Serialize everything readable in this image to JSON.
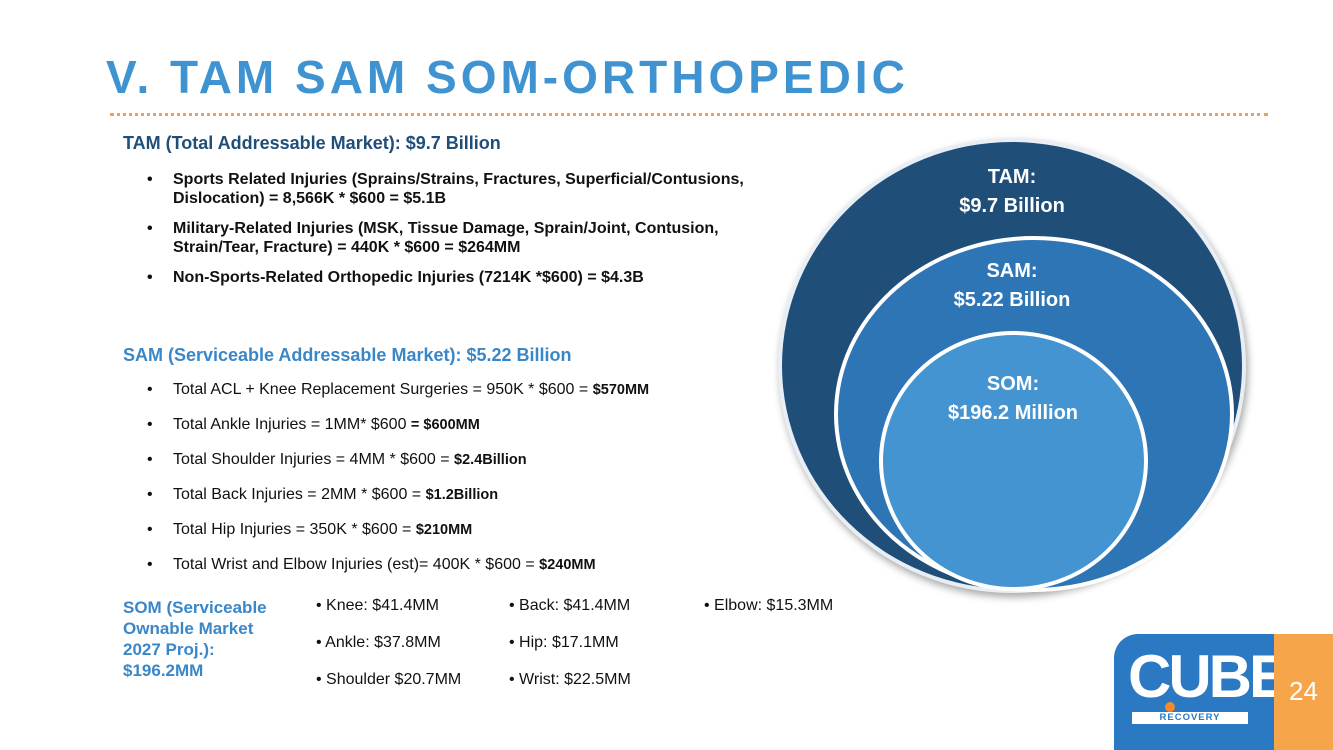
{
  "title": "V. TAM SAM SOM-ORTHOPEDIC",
  "tam": {
    "heading": "TAM (Total Addressable Market): $9.7 Billion",
    "items": [
      "Sports Related Injuries (Sprains/Strains, Fractures, Superficial/Contusions, Dislocation) = 8,566K * $600 = $5.1B",
      "Military-Related Injuries (MSK, Tissue Damage, Sprain/Joint, Contusion, Strain/Tear, Fracture) = 440K * $600 = $264MM",
      "Non-Sports-Related Orthopedic Injuries (7214K *$600) = $4.3B"
    ]
  },
  "sam": {
    "heading": "SAM (Serviceable Addressable Market): $5.22 Billion",
    "items": [
      {
        "text": "Total ACL + Knee Replacement Surgeries = 950K * $600 = ",
        "amount": "$570MM"
      },
      {
        "text": "Total Ankle Injuries = 1MM* $600 ",
        "amount": "= $600MM"
      },
      {
        "text": "Total Shoulder Injuries = 4MM * $600 = ",
        "amount": "$2.4Billion"
      },
      {
        "text": "Total Back Injuries = 2MM * $600 = ",
        "amount": "$1.2Billion"
      },
      {
        "text": "Total Hip Injuries = 350K * $600 = ",
        "amount": "$210MM"
      },
      {
        "text": "Total Wrist and Elbow Injuries (est)= 400K * $600 = ",
        "amount": "$240MM"
      }
    ]
  },
  "som": {
    "label": "SOM (Serviceable Ownable Market 2027 Proj.): $196.2MM",
    "col1": [
      "Knee: $41.4MM",
      "Ankle: $37.8MM",
      "Shoulder $20.7MM"
    ],
    "col2": [
      "Back: $41.4MM",
      "Hip: $17.1MM",
      "Wrist: $22.5MM"
    ],
    "col3": [
      "Elbow: $15.3MM"
    ]
  },
  "circles": {
    "tam": {
      "label": "TAM:",
      "value": "$9.7 Billion",
      "color": "#1f4e79"
    },
    "sam": {
      "label": "SAM:",
      "value": "$5.22 Billion",
      "color": "#2e75b6"
    },
    "som": {
      "label": "SOM:",
      "value": "$196.2 Million",
      "color": "#4594d2"
    }
  },
  "logo": {
    "brand": "CUBE",
    "sub": "RECOVERY"
  },
  "page_number": "24"
}
